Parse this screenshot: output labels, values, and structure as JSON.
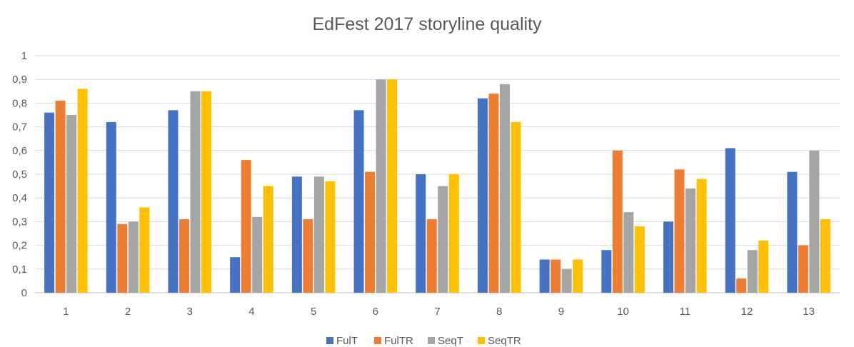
{
  "chart_data": {
    "type": "bar",
    "title": "EdFest 2017 storyline quality",
    "xlabel": "",
    "ylabel": "",
    "categories": [
      "1",
      "2",
      "3",
      "4",
      "5",
      "6",
      "7",
      "8",
      "9",
      "10",
      "11",
      "12",
      "13"
    ],
    "ylim": [
      0,
      1
    ],
    "yticks": [
      "0",
      "0,1",
      "0,2",
      "0,3",
      "0,4",
      "0,5",
      "0,6",
      "0,7",
      "0,8",
      "0,9",
      "1"
    ],
    "grid": true,
    "legend": "bottom",
    "series": [
      {
        "name": "FulT",
        "color": "#4472C4",
        "values": [
          0.76,
          0.72,
          0.77,
          0.15,
          0.49,
          0.77,
          0.5,
          0.82,
          0.14,
          0.18,
          0.3,
          0.61,
          0.51
        ]
      },
      {
        "name": "FulTR",
        "color": "#ED7D31",
        "values": [
          0.81,
          0.29,
          0.31,
          0.56,
          0.31,
          0.51,
          0.31,
          0.84,
          0.14,
          0.6,
          0.52,
          0.06,
          0.2
        ]
      },
      {
        "name": "SeqT",
        "color": "#A5A5A5",
        "values": [
          0.75,
          0.3,
          0.85,
          0.32,
          0.49,
          0.9,
          0.45,
          0.88,
          0.1,
          0.34,
          0.44,
          0.18,
          0.6
        ]
      },
      {
        "name": "SeqTR",
        "color": "#FFC000",
        "values": [
          0.86,
          0.36,
          0.85,
          0.45,
          0.47,
          0.9,
          0.5,
          0.72,
          0.14,
          0.28,
          0.48,
          0.22,
          0.31
        ]
      }
    ]
  }
}
